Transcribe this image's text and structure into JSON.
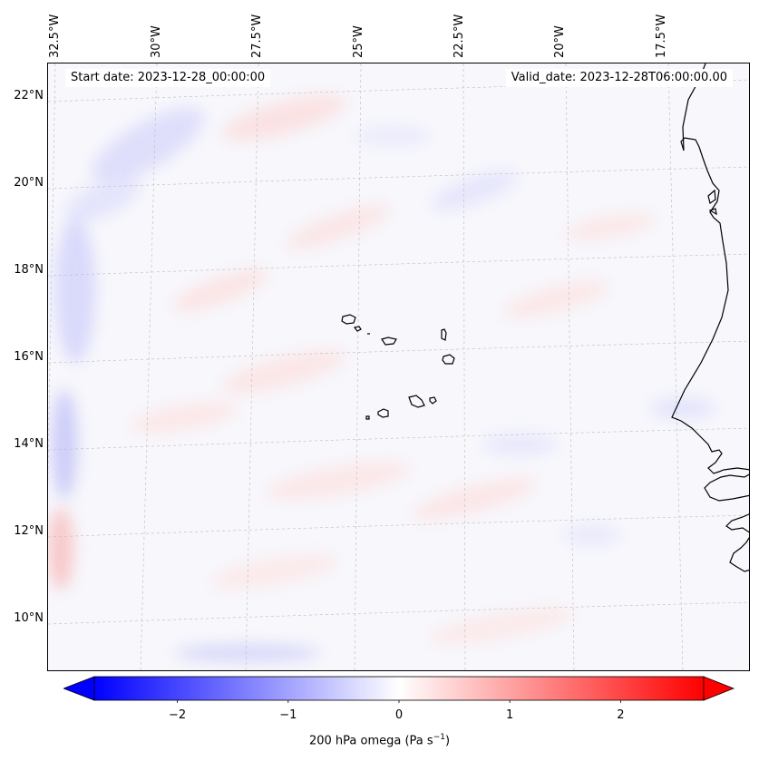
{
  "map": {
    "start_date_label": "Start date: 2023-12-28_00:00:00",
    "valid_date_label": "Valid_date: 2023-12-28T06:00:00.00",
    "variable": "200 hPa omega",
    "units_base": "Pa s",
    "units_exponent": "−1",
    "lat_labels": [
      "22°N",
      "20°N",
      "18°N",
      "16°N",
      "14°N",
      "12°N",
      "10°N"
    ],
    "lon_labels": [
      "32.5°W",
      "30°W",
      "27.5°W",
      "25°W",
      "22.5°W",
      "20°W",
      "17.5°W"
    ],
    "features": [
      "Cape Verde islands",
      "West African coastline"
    ]
  },
  "colorbar": {
    "colormap": "bwr",
    "min": -2.75,
    "max": 2.75,
    "extend": "both",
    "ticks": [
      "−2",
      "−1",
      "0",
      "1",
      "2"
    ],
    "tick_values": [
      -2,
      -1,
      0,
      1,
      2
    ],
    "color_negative": "#0000ff",
    "color_zero": "#ffffff",
    "color_positive": "#ff0000"
  }
}
